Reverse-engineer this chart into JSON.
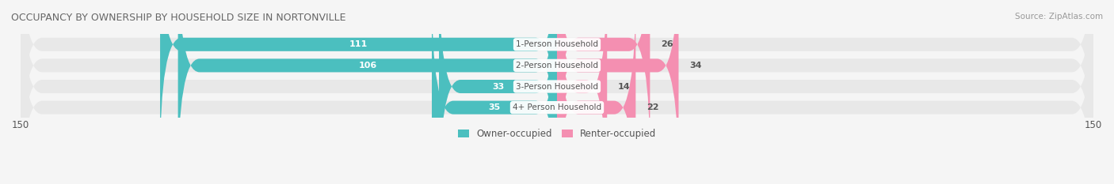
{
  "title": "OCCUPANCY BY OWNERSHIP BY HOUSEHOLD SIZE IN NORTONVILLE",
  "source": "Source: ZipAtlas.com",
  "categories": [
    "1-Person Household",
    "2-Person Household",
    "3-Person Household",
    "4+ Person Household"
  ],
  "owner_values": [
    111,
    106,
    33,
    35
  ],
  "renter_values": [
    26,
    34,
    14,
    22
  ],
  "owner_color": "#4BBFBF",
  "renter_color": "#F48FB1",
  "owner_color_light": "#7DD4D4",
  "renter_color_light": "#F8BBD0",
  "axis_limit": 150,
  "legend_labels": [
    "Owner-occupied",
    "Renter-occupied"
  ],
  "background_color": "#f5f5f5",
  "bar_background": "#e8e8e8",
  "title_color": "#555555",
  "label_color": "#555555",
  "value_color_on_bar": "#ffffff",
  "value_color_off_bar": "#555555"
}
